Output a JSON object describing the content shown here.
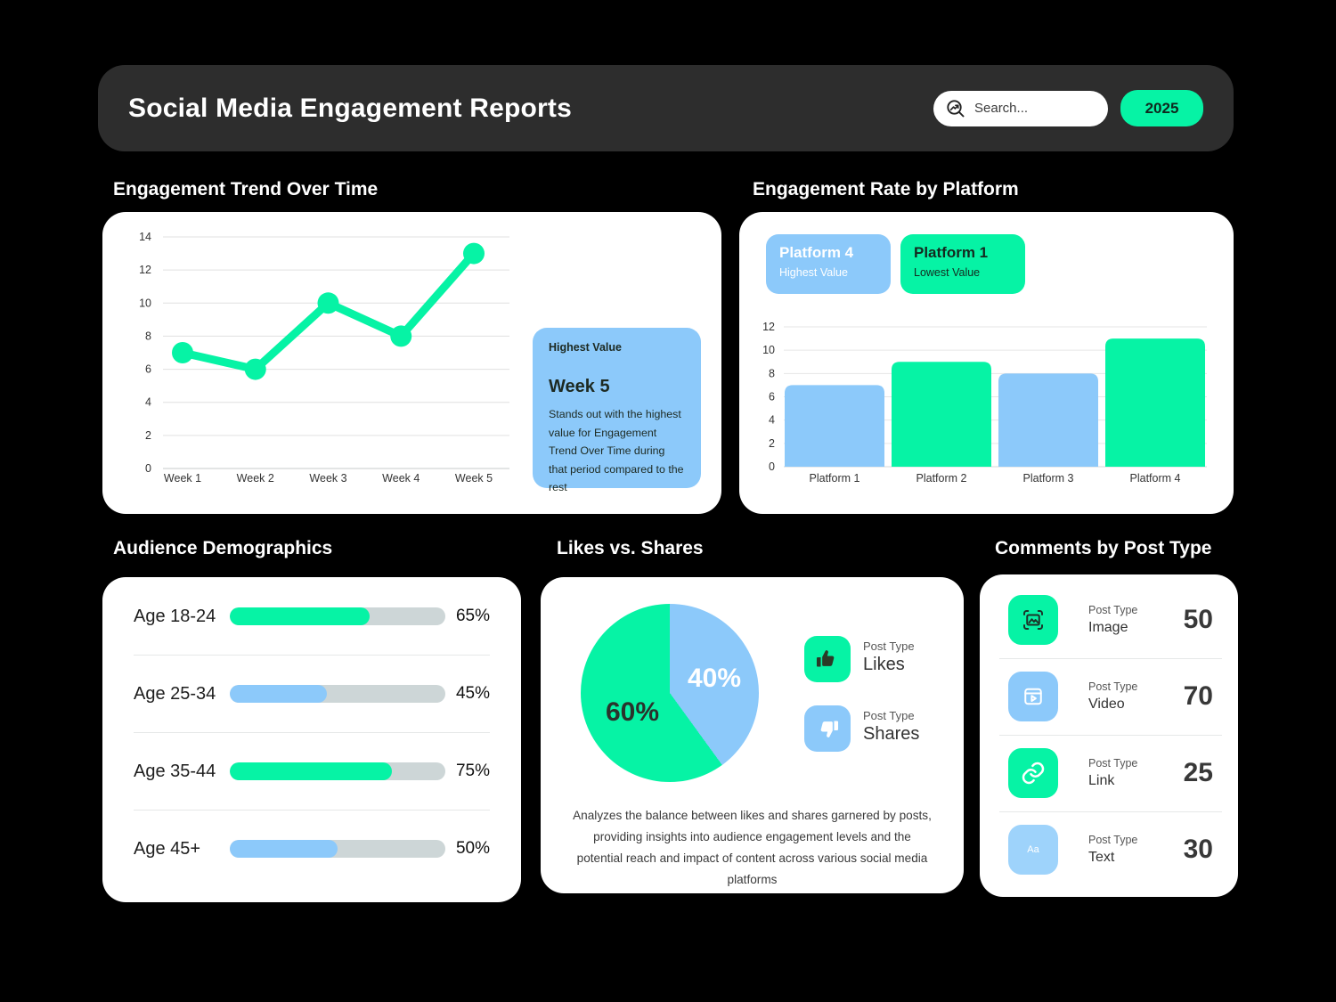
{
  "colors": {
    "page_bg": "#000000",
    "header_bg": "#2D2D2D",
    "card_bg": "#FFFFFF",
    "accent_green": "#06F3A5",
    "accent_blue": "#8CC9FA",
    "light_blue": "#9ED3FB",
    "track_gray": "#CDD6D7",
    "grid_gray": "#E0E0E0",
    "axis_text": "#333333"
  },
  "header": {
    "title": "Social Media Engagement Reports",
    "search_placeholder": "Search...",
    "year_button": "2025"
  },
  "sections": {
    "trend": {
      "title": "Engagement Trend Over Time",
      "callout": {
        "bg": "#8CC9FA",
        "label": "Highest Value",
        "heading": "Week 5",
        "body": "Stands out with the highest value for Engagement Trend Over Time during that period compared to the rest"
      }
    },
    "platform": {
      "title": "Engagement Rate by Platform",
      "chips": [
        {
          "title": "Platform 4",
          "subtitle": "Highest Value",
          "bg": "#8CC9FA",
          "text": "#FFFFFF"
        },
        {
          "title": "Platform 1",
          "subtitle": "Lowest Value",
          "bg": "#06F3A5",
          "text": "#14291F"
        }
      ]
    },
    "demographics": {
      "title": "Audience Demographics"
    },
    "likes_shares": {
      "title": "Likes vs. Shares",
      "legend": [
        {
          "label_top": "Post Type",
          "label": "Likes",
          "icon": "thumbs-up",
          "icon_bg": "#06F3A5"
        },
        {
          "label_top": "Post Type",
          "label": "Shares",
          "icon": "thumbs-down",
          "icon_bg": "#8CC9FA"
        }
      ],
      "description": "Analyzes the balance between likes and shares garnered by posts, providing insights into audience engagement levels and the potential reach and impact of content across various social media platforms"
    },
    "comments": {
      "title": "Comments by Post Type",
      "rows": [
        {
          "label_top": "Post Type",
          "label": "Image",
          "value": "50",
          "icon": "image",
          "icon_bg": "#06F3A5"
        },
        {
          "label_top": "Post Type",
          "label": "Video",
          "value": "70",
          "icon": "video",
          "icon_bg": "#8CC9FA"
        },
        {
          "label_top": "Post Type",
          "label": "Link",
          "value": "25",
          "icon": "link",
          "icon_bg": "#06F3A5"
        },
        {
          "label_top": "Post Type",
          "label": "Text",
          "value": "30",
          "icon": "text",
          "icon_bg": "#9ED3FB"
        }
      ]
    }
  },
  "chart_data": [
    {
      "id": "trend",
      "type": "line",
      "title": "Engagement Trend Over Time",
      "categories": [
        "Week 1",
        "Week 2",
        "Week 3",
        "Week 4",
        "Week 5"
      ],
      "values": [
        7,
        6,
        10,
        8,
        13
      ],
      "ylim": [
        0,
        14
      ],
      "ytick_step": 2,
      "grid": true,
      "line_color": "#06F3A5",
      "marker": "circle",
      "legend_position": "none"
    },
    {
      "id": "platform",
      "type": "bar",
      "title": "Engagement Rate by Platform",
      "categories": [
        "Platform 1",
        "Platform 2",
        "Platform 3",
        "Platform 4"
      ],
      "values": [
        7,
        9,
        8,
        11
      ],
      "bar_colors": [
        "#8CC9FA",
        "#06F3A5",
        "#8CC9FA",
        "#06F3A5"
      ],
      "ylim": [
        0,
        12
      ],
      "ytick_step": 2,
      "grid": true,
      "legend_position": "none"
    },
    {
      "id": "demographics",
      "type": "bar",
      "orientation": "horizontal",
      "title": "Audience Demographics",
      "categories": [
        "Age 18-24",
        "Age 25-34",
        "Age 35-44",
        "Age 45+"
      ],
      "values": [
        65,
        45,
        75,
        50
      ],
      "value_labels": [
        "65%",
        "45%",
        "75%",
        "50%"
      ],
      "bar_colors": [
        "#06F3A5",
        "#8CC9FA",
        "#06F3A5",
        "#8CC9FA"
      ],
      "xlim": [
        0,
        100
      ]
    },
    {
      "id": "likes_shares",
      "type": "pie",
      "title": "Likes vs. Shares",
      "labels": [
        "Likes",
        "Shares"
      ],
      "values": [
        60,
        40
      ],
      "value_labels": [
        "60%",
        "40%"
      ],
      "colors": [
        "#06F3A5",
        "#8CC9FA"
      ],
      "start_angle": "top",
      "direction": "clockwise",
      "first_slice_drawn": "Shares"
    }
  ]
}
